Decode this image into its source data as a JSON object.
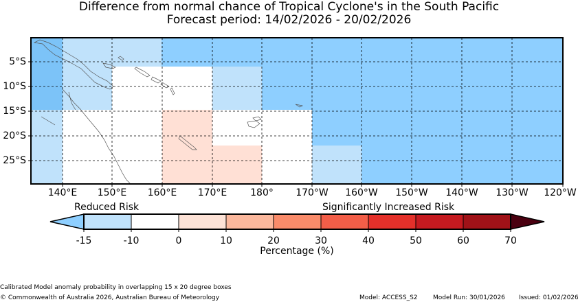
{
  "header": {
    "title": "Difference from normal chance of Tropical Cyclone's in the South Pacific",
    "subtitle": "Forecast period: 14/02/2026 - 20/02/2026"
  },
  "map": {
    "lat_labels": [
      "5°S",
      "10°S",
      "15°S",
      "20°S",
      "25°S"
    ],
    "lon_labels": [
      "140°E",
      "150°E",
      "160°E",
      "170°E",
      "180°",
      "170°W",
      "160°W",
      "150°W",
      "140°W",
      "130°W",
      "120°W"
    ],
    "colors": {
      "light_blue": "#c0e2fb",
      "sky_blue": "#8ecfff",
      "mid_blue": "#7cc3f8",
      "pale_peach": "#ffe0d5",
      "white": "#ffffff"
    }
  },
  "colorbar": {
    "reduced_label": "Reduced Risk",
    "increased_label": "Significantly Increased Risk",
    "ticks": [
      "-15",
      "-10",
      "0",
      "10",
      "20",
      "30",
      "40",
      "50",
      "60",
      "70"
    ],
    "colors": [
      "#8ecfff",
      "#c0e2fb",
      "#ffffff",
      "#fde2d6",
      "#fbb89d",
      "#f98b6a",
      "#f35e48",
      "#e4302a",
      "#c51a20",
      "#a01218",
      "#4a0010"
    ],
    "title": "Percentage (%)"
  },
  "footer": {
    "note": "Calibrated Model anomaly probability in overlapping 15 x 20 degree boxes",
    "copyright": "© Commonwealth of Australia 2026, Australian Bureau of Meteorology",
    "model": "Model: ACCESS_S2",
    "model_run": "Model Run: 30/01/2026",
    "issued": "Issued: 01/02/2026"
  }
}
